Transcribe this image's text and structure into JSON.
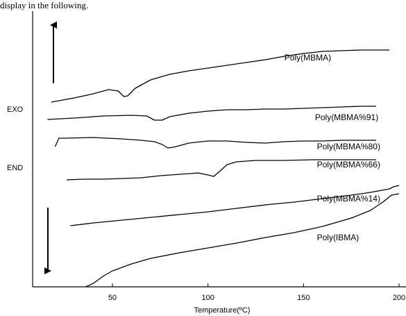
{
  "caption": "display in the following.",
  "chart_data": {
    "type": "line",
    "title": "",
    "xlabel": "Temperature(ºC)",
    "ylabel": "",
    "xlim": [
      10,
      200
    ],
    "xticks": [
      50,
      100,
      150,
      200
    ],
    "xtick_labels": [
      "50",
      "100",
      "150",
      "200"
    ],
    "side_labels": {
      "exo": "EXO",
      "end": "END"
    },
    "grid": false,
    "series": [
      {
        "name": "Poly(MBMA)",
        "label_at": [
          140,
          87
        ],
        "points": [
          [
            18,
            147
          ],
          [
            30,
            141
          ],
          [
            40,
            135
          ],
          [
            48,
            129
          ],
          [
            53,
            131
          ],
          [
            56,
            139
          ],
          [
            58,
            138
          ],
          [
            62,
            127
          ],
          [
            70,
            115
          ],
          [
            80,
            107
          ],
          [
            90,
            102
          ],
          [
            100,
            98
          ],
          [
            110,
            94
          ],
          [
            120,
            90
          ],
          [
            130,
            86
          ],
          [
            140,
            81
          ],
          [
            150,
            77
          ],
          [
            160,
            74
          ],
          [
            170,
            73
          ],
          [
            180,
            72
          ],
          [
            190,
            72
          ],
          [
            195,
            72
          ]
        ]
      },
      {
        "name": "Poly(MBMA%91)",
        "label_at": [
          156,
          173
        ],
        "points": [
          [
            16,
            172
          ],
          [
            30,
            170
          ],
          [
            45,
            167
          ],
          [
            60,
            166
          ],
          [
            68,
            167
          ],
          [
            72,
            173
          ],
          [
            76,
            173
          ],
          [
            80,
            168
          ],
          [
            90,
            163
          ],
          [
            100,
            160
          ],
          [
            110,
            158
          ],
          [
            120,
            158
          ],
          [
            130,
            157
          ],
          [
            140,
            157
          ],
          [
            150,
            156
          ],
          [
            160,
            155
          ],
          [
            170,
            154
          ],
          [
            180,
            153
          ],
          [
            188,
            153
          ]
        ]
      },
      {
        "name": "Poly(MBMA%80)",
        "label_at": [
          157,
          215
        ],
        "points": [
          [
            20,
            211
          ],
          [
            22,
            199
          ],
          [
            25,
            199
          ],
          [
            40,
            198
          ],
          [
            55,
            200
          ],
          [
            65,
            202
          ],
          [
            72,
            204
          ],
          [
            76,
            208
          ],
          [
            79,
            213
          ],
          [
            82,
            212
          ],
          [
            90,
            206
          ],
          [
            100,
            203
          ],
          [
            110,
            203
          ],
          [
            120,
            205
          ],
          [
            130,
            206
          ],
          [
            140,
            204
          ],
          [
            150,
            203
          ],
          [
            160,
            203
          ],
          [
            170,
            202
          ],
          [
            180,
            202
          ],
          [
            188,
            202
          ]
        ]
      },
      {
        "name": "Poly(MBMA%66)",
        "label_at": [
          157,
          241
        ],
        "points": [
          [
            26,
            259
          ],
          [
            35,
            258
          ],
          [
            45,
            258
          ],
          [
            55,
            257
          ],
          [
            65,
            256
          ],
          [
            75,
            253
          ],
          [
            85,
            251
          ],
          [
            95,
            249
          ],
          [
            100,
            252
          ],
          [
            103,
            254
          ],
          [
            106,
            247
          ],
          [
            110,
            237
          ],
          [
            115,
            233
          ],
          [
            125,
            231
          ],
          [
            140,
            231
          ],
          [
            155,
            230
          ],
          [
            170,
            230
          ],
          [
            180,
            230
          ],
          [
            188,
            230
          ]
        ]
      },
      {
        "name": "Poly(MBMA%14)",
        "label_at": [
          157,
          290
        ],
        "points": [
          [
            28,
            325
          ],
          [
            40,
            321
          ],
          [
            55,
            317
          ],
          [
            70,
            313
          ],
          [
            85,
            309
          ],
          [
            100,
            305
          ],
          [
            115,
            300
          ],
          [
            130,
            295
          ],
          [
            145,
            291
          ],
          [
            160,
            286
          ],
          [
            175,
            281
          ],
          [
            185,
            277
          ],
          [
            195,
            272
          ],
          [
            197,
            269
          ],
          [
            200,
            267
          ]
        ]
      },
      {
        "name": "Poly(IBMA)",
        "label_at": [
          157,
          346
        ],
        "points": [
          [
            36,
            413
          ],
          [
            40,
            408
          ],
          [
            45,
            398
          ],
          [
            50,
            390
          ],
          [
            60,
            380
          ],
          [
            70,
            372
          ],
          [
            85,
            364
          ],
          [
            100,
            357
          ],
          [
            115,
            350
          ],
          [
            130,
            342
          ],
          [
            145,
            335
          ],
          [
            160,
            326
          ],
          [
            175,
            314
          ],
          [
            185,
            303
          ],
          [
            192,
            290
          ],
          [
            196,
            281
          ],
          [
            200,
            279
          ]
        ]
      }
    ]
  }
}
